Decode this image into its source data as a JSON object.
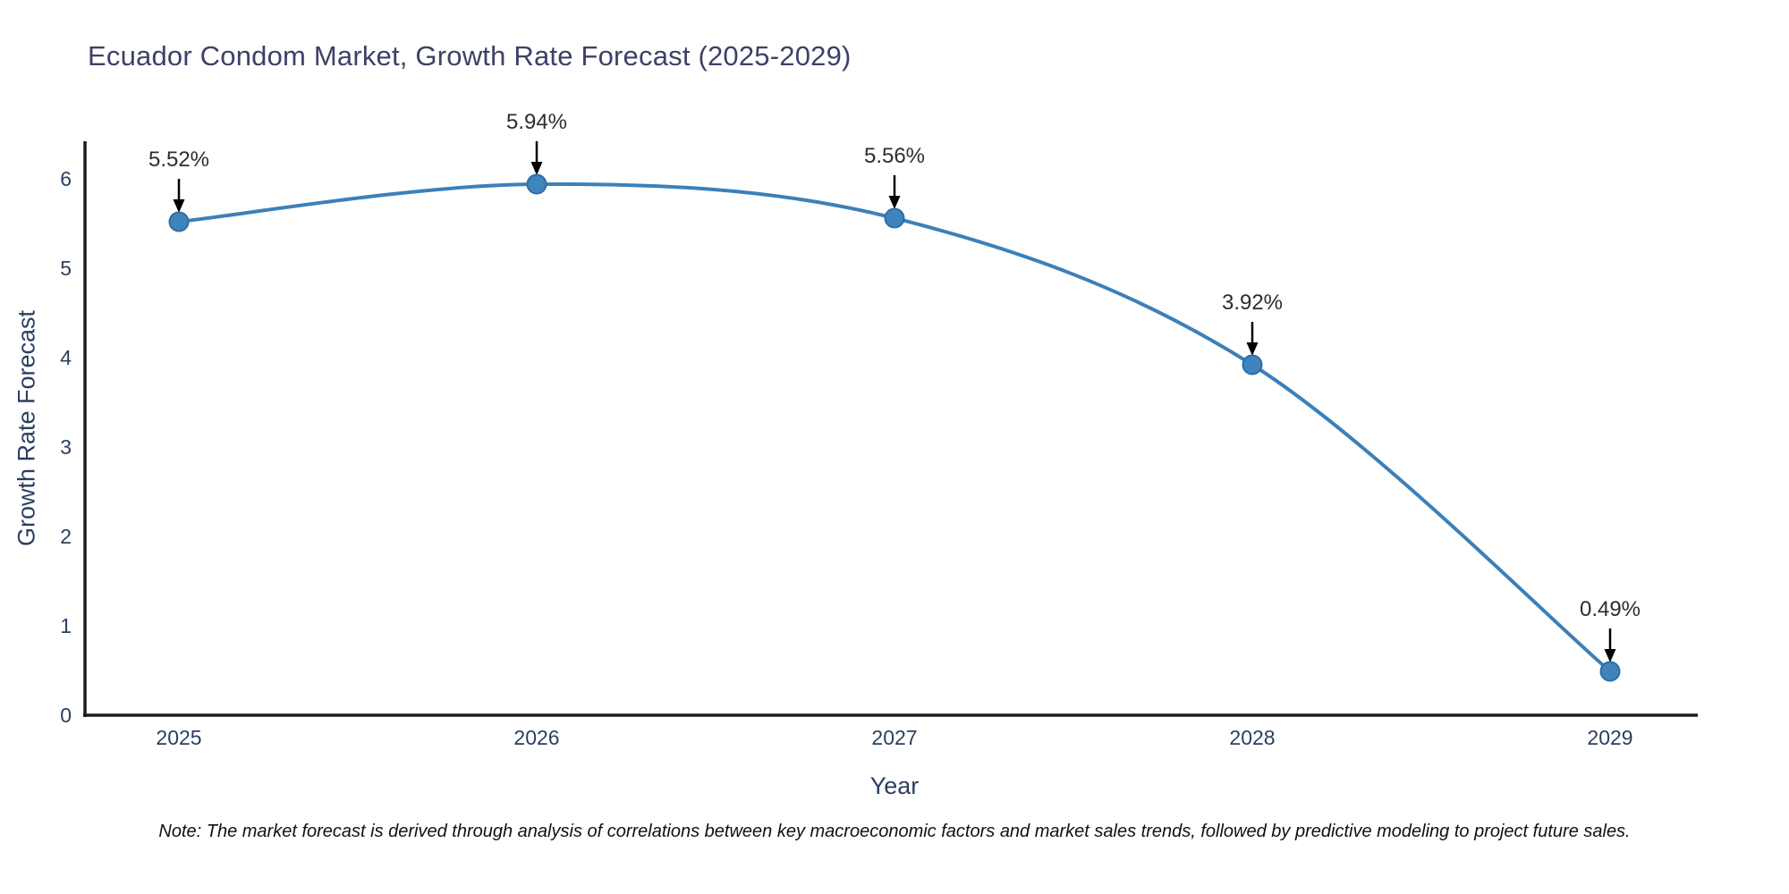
{
  "title": "Ecuador Condom Market, Growth Rate Forecast (2025-2029)",
  "note": "Note: The market forecast is derived through analysis of correlations between key macroeconomic factors and market sales trends, followed by predictive modeling to project future sales.",
  "colors": {
    "background": "#ffffff",
    "line": "#3c80b9",
    "marker_fill": "#4084bd",
    "marker_stroke": "#2e6da4",
    "axis": "#1c1c1c",
    "tick_label": "#2a3f5f",
    "title": "#3e4166",
    "annotation_text": "#2d2d2d",
    "arrow": "#000000"
  },
  "chart_data": {
    "type": "line",
    "title": "Ecuador Condom Market, Growth Rate Forecast (2025-2029)",
    "xlabel": "Year",
    "ylabel": "Growth Rate Forecast",
    "x": [
      2025,
      2026,
      2027,
      2028,
      2029
    ],
    "series": [
      {
        "name": "Growth Rate Forecast",
        "values": [
          5.52,
          5.94,
          5.56,
          3.92,
          0.49
        ],
        "point_labels": [
          "5.52%",
          "5.94%",
          "5.56%",
          "3.92%",
          "0.49%"
        ]
      }
    ],
    "ylim": [
      0,
      6
    ],
    "yticks": [
      0,
      1,
      2,
      3,
      4,
      5,
      6
    ],
    "xticks": [
      "2025",
      "2026",
      "2027",
      "2028",
      "2029"
    ],
    "line_shape": "spline",
    "grid": false,
    "legend_position": "none",
    "annotation_style": "value labels above points with downward black arrows"
  }
}
